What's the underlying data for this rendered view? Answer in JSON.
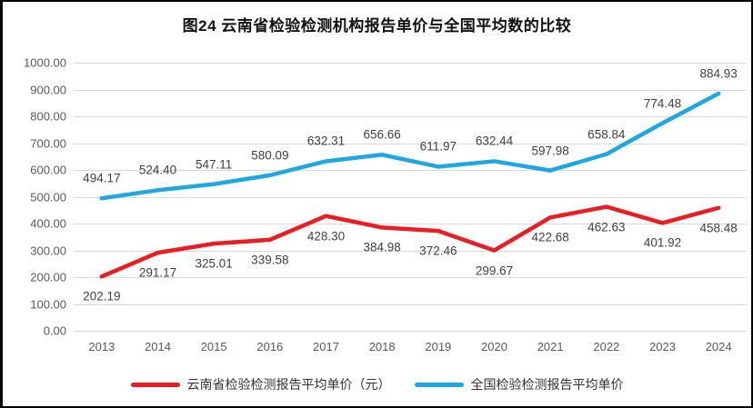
{
  "title": "图24  云南省检验检测机构报告单价与全国平均数的比较",
  "colors": {
    "yunnan_line": "#ec1c23",
    "national_line": "#1ea7e1",
    "gridline": "#d9d9d9",
    "axis_text": "#595959",
    "data_label_text": "#3f3f3f",
    "frame_border": "#000000"
  },
  "chart_data": {
    "type": "line",
    "categories": [
      "2013",
      "2014",
      "2015",
      "2016",
      "2017",
      "2018",
      "2019",
      "2020",
      "2021",
      "2022",
      "2023",
      "2024"
    ],
    "series": [
      {
        "name": "云南省检验检测报告平均单价（元）",
        "color_key": "yunnan_line",
        "label_position": "below",
        "values": [
          202.19,
          291.17,
          325.01,
          339.58,
          428.3,
          384.98,
          372.46,
          299.67,
          422.68,
          462.63,
          401.92,
          458.48
        ],
        "value_labels": [
          "202.19",
          "291.17",
          "325.01",
          "339.58",
          "428.30",
          "384.98",
          "372.46",
          "299.67",
          "422.68",
          "462.63",
          "401.92",
          "458.48"
        ]
      },
      {
        "name": "全国检验检测报告平均单价",
        "color_key": "national_line",
        "label_position": "above",
        "values": [
          494.17,
          524.4,
          547.11,
          580.09,
          632.31,
          656.66,
          611.97,
          632.44,
          597.98,
          658.84,
          774.48,
          884.93
        ],
        "value_labels": [
          "494.17",
          "524.40",
          "547.11",
          "580.09",
          "632.31",
          "656.66",
          "611.97",
          "632.44",
          "597.98",
          "658.84",
          "774.48",
          "884.93"
        ]
      }
    ],
    "ylim": [
      0,
      1000
    ],
    "ytick_step": 100,
    "ytick_labels": [
      "0.00",
      "100.00",
      "200.00",
      "300.00",
      "400.00",
      "500.00",
      "600.00",
      "700.00",
      "800.00",
      "900.00",
      "1000.00"
    ],
    "grid": true,
    "legend_position": "bottom"
  }
}
